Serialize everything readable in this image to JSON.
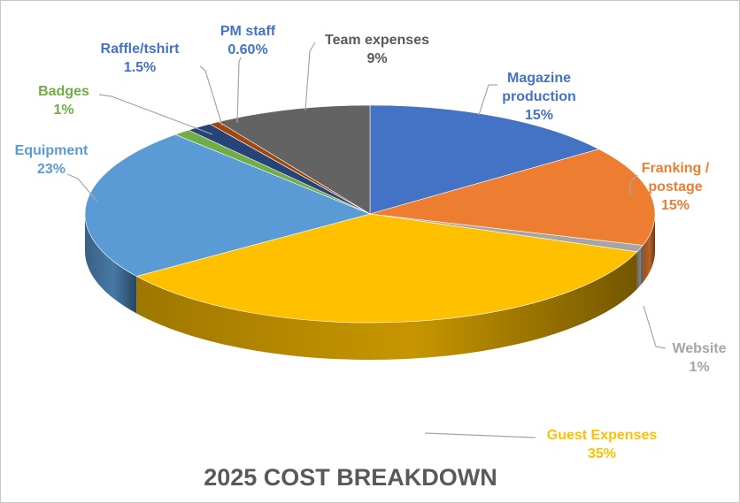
{
  "chart_data": {
    "type": "pie",
    "title": "2025 COST BREAKDOWN",
    "three_d": true,
    "slices": [
      {
        "name": "Magazine production",
        "lines": [
          "Magazine",
          "production"
        ],
        "pct_label": "15%",
        "value": 15,
        "color": "#4472C4",
        "label_color": "#4472C4"
      },
      {
        "name": "Franking / postage",
        "lines": [
          "Franking /",
          "postage"
        ],
        "pct_label": "15%",
        "value": 15,
        "color": "#ED7D31",
        "label_color": "#ED7D31"
      },
      {
        "name": "Website",
        "lines": [
          "Website"
        ],
        "pct_label": "1%",
        "value": 1,
        "color": "#A5A5A5",
        "label_color": "#A5A5A5"
      },
      {
        "name": "Guest Expenses",
        "lines": [
          "Guest Expenses"
        ],
        "pct_label": "35%",
        "value": 35,
        "color": "#FFC000",
        "label_color": "#FFC000"
      },
      {
        "name": "Equipment",
        "lines": [
          "Equipment"
        ],
        "pct_label": "23%",
        "value": 23,
        "color": "#5B9BD5",
        "label_color": "#5B9BD5"
      },
      {
        "name": "Badges",
        "lines": [
          "Badges"
        ],
        "pct_label": "1%",
        "value": 1,
        "color": "#70AD47",
        "label_color": "#70AD47"
      },
      {
        "name": "Raffle/tshirt",
        "lines": [
          "Raffle/tshirt"
        ],
        "pct_label": "1.5%",
        "value": 1.5,
        "color": "#264478",
        "label_color": "#4472C4"
      },
      {
        "name": "PM staff",
        "lines": [
          "PM staff"
        ],
        "pct_label": "0.60%",
        "value": 0.6,
        "color": "#9E480E",
        "label_color": "#4472C4"
      },
      {
        "name": "Team expenses",
        "lines": [
          "Team expenses"
        ],
        "pct_label": "9%",
        "value": 9,
        "color": "#636363",
        "label_color": "#595959"
      }
    ]
  }
}
